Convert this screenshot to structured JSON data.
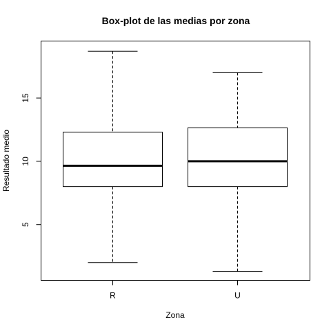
{
  "chart_data": {
    "type": "boxplot",
    "title": "Box-plot de las medias por zona",
    "xlabel": "Zona",
    "ylabel": "Resultado medio",
    "categories": [
      "R",
      "U"
    ],
    "boxes": [
      {
        "label": "R",
        "min": 2.0,
        "q1": 8.0,
        "median": 9.65,
        "q3": 12.3,
        "max": 18.7
      },
      {
        "label": "U",
        "min": 1.3,
        "q1": 8.0,
        "median": 10.0,
        "q3": 12.65,
        "max": 17.0
      }
    ],
    "ylim": [
      0.6,
      19.5
    ],
    "yticks": [
      5,
      10,
      15
    ],
    "ytick_labels": [
      "5",
      "10",
      "15"
    ]
  }
}
